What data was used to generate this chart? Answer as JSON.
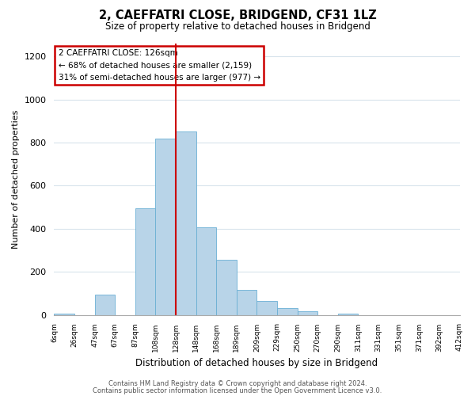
{
  "title": "2, CAEFFATRI CLOSE, BRIDGEND, CF31 1LZ",
  "subtitle": "Size of property relative to detached houses in Bridgend",
  "xlabel": "Distribution of detached houses by size in Bridgend",
  "ylabel": "Number of detached properties",
  "bar_color": "#b8d4e8",
  "bar_edge_color": "#6aafd4",
  "vline_color": "#cc0000",
  "vline_index": 6,
  "annotation_title": "2 CAEFFATRI CLOSE: 126sqm",
  "annotation_line1": "← 68% of detached houses are smaller (2,159)",
  "annotation_line2": "31% of semi-detached houses are larger (977) →",
  "tick_labels": [
    "6sqm",
    "26sqm",
    "47sqm",
    "67sqm",
    "87sqm",
    "108sqm",
    "128sqm",
    "148sqm",
    "168sqm",
    "189sqm",
    "209sqm",
    "229sqm",
    "250sqm",
    "270sqm",
    "290sqm",
    "311sqm",
    "331sqm",
    "351sqm",
    "371sqm",
    "392sqm",
    "412sqm"
  ],
  "bar_heights": [
    5,
    0,
    95,
    0,
    495,
    820,
    850,
    405,
    255,
    115,
    65,
    30,
    15,
    0,
    5,
    0,
    0,
    0,
    0,
    0
  ],
  "ylim": [
    0,
    1260
  ],
  "yticks": [
    0,
    200,
    400,
    600,
    800,
    1000,
    1200
  ],
  "footer_line1": "Contains HM Land Registry data © Crown copyright and database right 2024.",
  "footer_line2": "Contains public sector information licensed under the Open Government Licence v3.0.",
  "bg_color": "#ffffff",
  "grid_color": "#d8e4ec",
  "annotation_box_color": "#ffffff",
  "annotation_box_edge": "#cc0000"
}
